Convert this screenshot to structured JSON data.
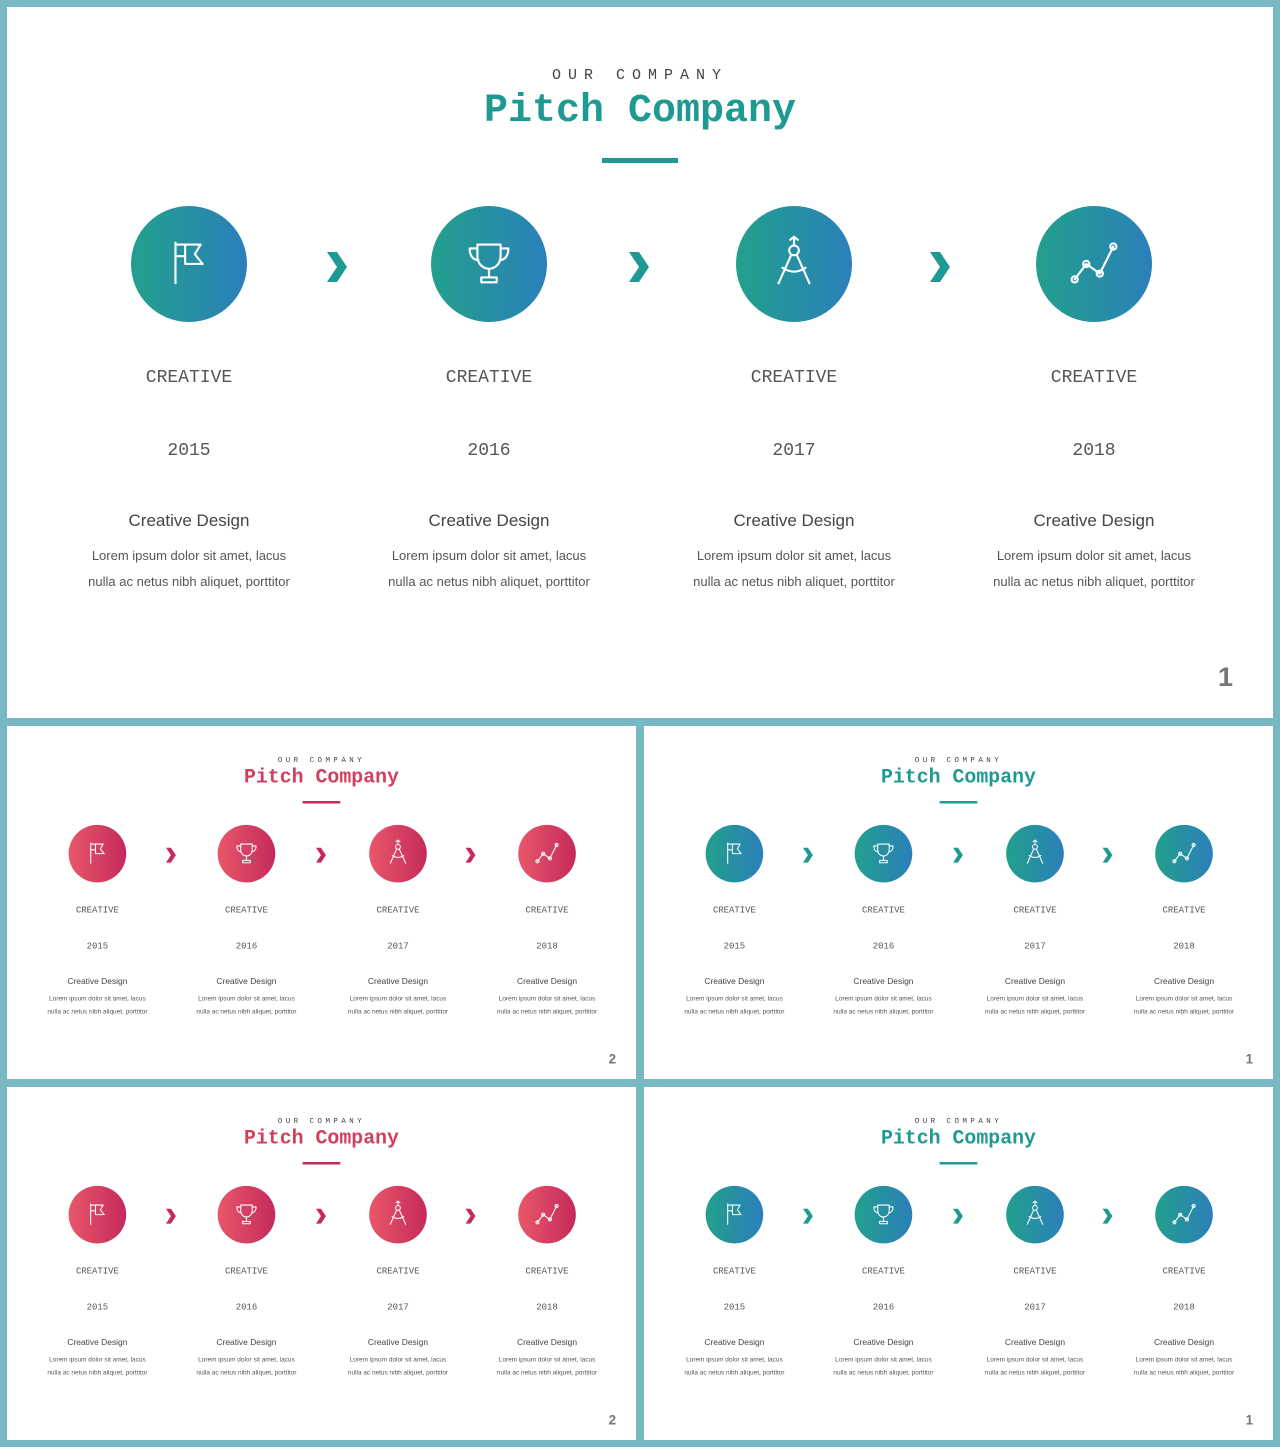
{
  "colors": {
    "teal": "#22a08c",
    "blue": "#2b7fba",
    "pink": "#e8576a",
    "magenta": "#c52a5a",
    "teal_title": "#1f9a93",
    "pink_title": "#d23f5c"
  },
  "slides": [
    {
      "theme": "teal",
      "kicker": "OUR COMPANY",
      "title": "Pitch Company",
      "page": "1",
      "steps": [
        {
          "icon": "flag-icon",
          "label": "CREATIVE",
          "year": "2015",
          "heading": "Creative Design",
          "body": "Lorem ipsum dolor sit amet, lacus nulla ac netus nibh aliquet, porttitor"
        },
        {
          "icon": "trophy-icon",
          "label": "CREATIVE",
          "year": "2016",
          "heading": "Creative Design",
          "body": "Lorem ipsum dolor sit amet, lacus nulla ac netus nibh aliquet, porttitor"
        },
        {
          "icon": "compass-icon",
          "label": "CREATIVE",
          "year": "2017",
          "heading": "Creative Design",
          "body": "Lorem ipsum dolor sit amet, lacus nulla ac netus nibh aliquet, porttitor"
        },
        {
          "icon": "line-chart-icon",
          "label": "CREATIVE",
          "year": "2018",
          "heading": "Creative Design",
          "body": "Lorem ipsum dolor sit amet, lacus nulla ac netus nibh aliquet, porttitor"
        }
      ]
    },
    {
      "theme": "pink",
      "kicker": "OUR COMPANY",
      "title": "Pitch Company",
      "page": "2",
      "steps": [
        {
          "icon": "flag-icon",
          "label": "CREATIVE",
          "year": "2015",
          "heading": "Creative Design",
          "body": "Lorem ipsum dolor sit amet, lacus nulla ac netus nibh aliquet, porttitor"
        },
        {
          "icon": "trophy-icon",
          "label": "CREATIVE",
          "year": "2016",
          "heading": "Creative Design",
          "body": "Lorem ipsum dolor sit amet, lacus nulla ac netus nibh aliquet, porttitor"
        },
        {
          "icon": "compass-icon",
          "label": "CREATIVE",
          "year": "2017",
          "heading": "Creative Design",
          "body": "Lorem ipsum dolor sit amet, lacus nulla ac netus nibh aliquet, porttitor"
        },
        {
          "icon": "line-chart-icon",
          "label": "CREATIVE",
          "year": "2018",
          "heading": "Creative Design",
          "body": "Lorem ipsum dolor sit amet, lacus nulla ac netus nibh aliquet, porttitor"
        }
      ]
    },
    {
      "theme": "teal",
      "kicker": "OUR COMPANY",
      "title": "Pitch Company",
      "page": "1",
      "steps": [
        {
          "icon": "flag-icon",
          "label": "CREATIVE",
          "year": "2015",
          "heading": "Creative Design",
          "body": "Lorem ipsum dolor sit amet, lacus nulla ac netus nibh aliquet, porttitor"
        },
        {
          "icon": "trophy-icon",
          "label": "CREATIVE",
          "year": "2016",
          "heading": "Creative Design",
          "body": "Lorem ipsum dolor sit amet, lacus nulla ac netus nibh aliquet, porttitor"
        },
        {
          "icon": "compass-icon",
          "label": "CREATIVE",
          "year": "2017",
          "heading": "Creative Design",
          "body": "Lorem ipsum dolor sit amet, lacus nulla ac netus nibh aliquet, porttitor"
        },
        {
          "icon": "line-chart-icon",
          "label": "CREATIVE",
          "year": "2018",
          "heading": "Creative Design",
          "body": "Lorem ipsum dolor sit amet, lacus nulla ac netus nibh aliquet, porttitor"
        }
      ]
    },
    {
      "theme": "pink",
      "kicker": "OUR COMPANY",
      "title": "Pitch Company",
      "page": "2",
      "steps": [
        {
          "icon": "flag-icon",
          "label": "CREATIVE",
          "year": "2015",
          "heading": "Creative Design",
          "body": "Lorem ipsum dolor sit amet, lacus nulla ac netus nibh aliquet, porttitor"
        },
        {
          "icon": "trophy-icon",
          "label": "CREATIVE",
          "year": "2016",
          "heading": "Creative Design",
          "body": "Lorem ipsum dolor sit amet, lacus nulla ac netus nibh aliquet, porttitor"
        },
        {
          "icon": "compass-icon",
          "label": "CREATIVE",
          "year": "2017",
          "heading": "Creative Design",
          "body": "Lorem ipsum dolor sit amet, lacus nulla ac netus nibh aliquet, porttitor"
        },
        {
          "icon": "line-chart-icon",
          "label": "CREATIVE",
          "year": "2018",
          "heading": "Creative Design",
          "body": "Lorem ipsum dolor sit amet, lacus nulla ac netus nibh aliquet, porttitor"
        }
      ]
    },
    {
      "theme": "teal",
      "kicker": "OUR COMPANY",
      "title": "Pitch Company",
      "page": "1",
      "steps": [
        {
          "icon": "flag-icon",
          "label": "CREATIVE",
          "year": "2015",
          "heading": "Creative Design",
          "body": "Lorem ipsum dolor sit amet, lacus nulla ac netus nibh aliquet, porttitor"
        },
        {
          "icon": "trophy-icon",
          "label": "CREATIVE",
          "year": "2016",
          "heading": "Creative Design",
          "body": "Lorem ipsum dolor sit amet, lacus nulla ac netus nibh aliquet, porttitor"
        },
        {
          "icon": "compass-icon",
          "label": "CREATIVE",
          "year": "2017",
          "heading": "Creative Design",
          "body": "Lorem ipsum dolor sit amet, lacus nulla ac netus nibh aliquet, porttitor"
        },
        {
          "icon": "line-chart-icon",
          "label": "CREATIVE",
          "year": "2018",
          "heading": "Creative Design",
          "body": "Lorem ipsum dolor sit amet, lacus nulla ac netus nibh aliquet, porttitor"
        }
      ]
    }
  ]
}
